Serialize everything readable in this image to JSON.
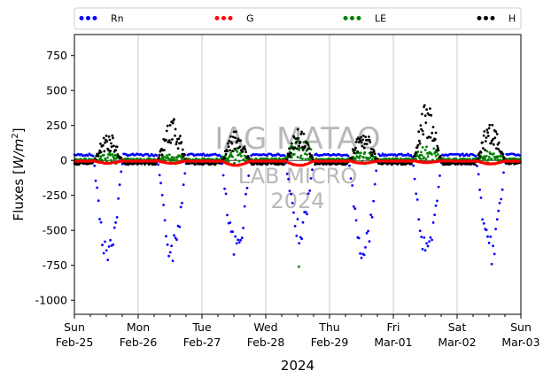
{
  "chart_data": {
    "type": "scatter",
    "title": "",
    "xlabel": "2024",
    "ylabel": "Fluxes [W/m²]",
    "ylabel_parts": {
      "main": "Fluxes [",
      "italic": "W/m",
      "sup": "2",
      "end": "]"
    },
    "ylim": [
      -1100,
      900
    ],
    "xlim": [
      "2024-02-25 00:00",
      "2024-03-03 00:00"
    ],
    "yticks": [
      -1000,
      -750,
      -500,
      -250,
      0,
      250,
      500,
      750
    ],
    "xticks": [
      {
        "day": "Sun",
        "date": "Feb-25"
      },
      {
        "day": "Mon",
        "date": "Feb-26"
      },
      {
        "day": "Tue",
        "date": "Feb-27"
      },
      {
        "day": "Wed",
        "date": "Feb-28"
      },
      {
        "day": "Thu",
        "date": "Feb-29"
      },
      {
        "day": "Fri",
        "date": "Mar-01"
      },
      {
        "day": "Sat",
        "date": "Mar-02"
      },
      {
        "day": "Sun",
        "date": "Mar-03"
      }
    ],
    "grid": {
      "x": true,
      "y": false
    },
    "legend_placement": "top, above plot, one row",
    "watermark": [
      "IAG MATAO",
      "LAB MICRO",
      "2024"
    ],
    "series": [
      {
        "name": "Rn",
        "color": "#0000ff",
        "daily_min": [
          -730,
          -690,
          -690,
          -550,
          -700,
          -720,
          -700
        ],
        "night_level": 40
      },
      {
        "name": "G",
        "color": "#ff0000",
        "daily_min": [
          -20,
          -20,
          -35,
          -35,
          -20,
          -15,
          -25
        ],
        "night_level": -5
      },
      {
        "name": "LE",
        "color": "#008000",
        "daily_peak": [
          60,
          50,
          90,
          175,
          60,
          120,
          60
        ],
        "outlier": {
          "x": "2024-02-28 12:00",
          "y": -760
        },
        "night_level": 5
      },
      {
        "name": "H",
        "color": "#000000",
        "daily_max": [
          215,
          330,
          230,
          240,
          250,
          430,
          310
        ],
        "night_level": -20
      }
    ]
  }
}
